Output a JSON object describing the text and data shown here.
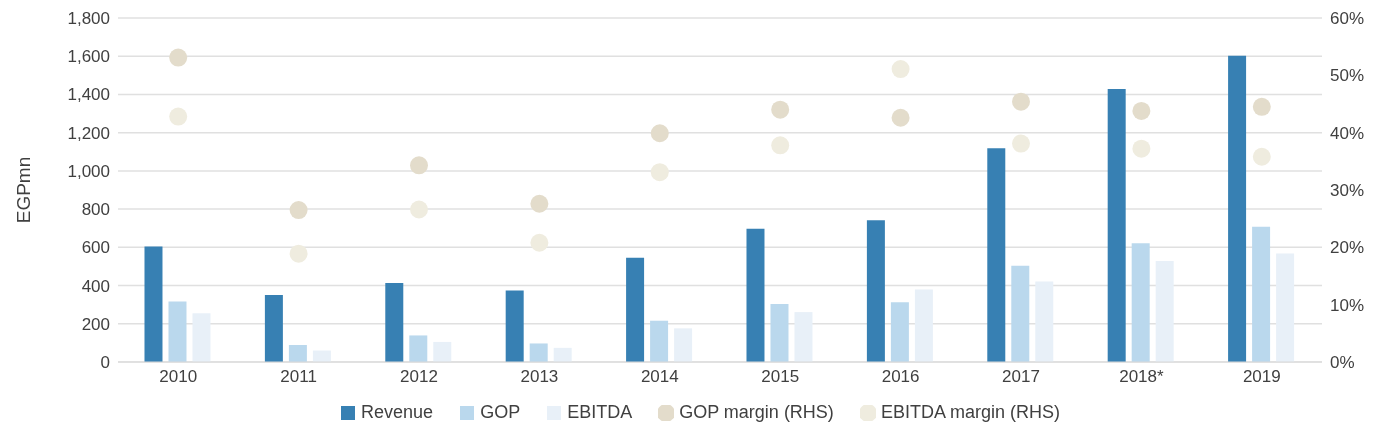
{
  "chart_data": {
    "type": "bar",
    "ylabel": "EGPmn",
    "categories": [
      "2010",
      "2011",
      "2012",
      "2013",
      "2014",
      "2015",
      "2016",
      "2017",
      "2018*",
      "2019"
    ],
    "series": [
      {
        "name": "Revenue",
        "color": "#3780b3",
        "values": [
          605,
          350,
          413,
          374,
          545,
          697,
          742,
          1118,
          1429,
          1603
        ]
      },
      {
        "name": "GOP",
        "color": "#bad8ed",
        "values": [
          316,
          89,
          139,
          97,
          216,
          303,
          313,
          503,
          621,
          708
        ]
      },
      {
        "name": "EBITDA",
        "color": "#e8f0f8",
        "values": [
          255,
          60,
          105,
          74,
          176,
          261,
          379,
          421,
          529,
          568
        ]
      },
      {
        "name": "GOP margin (RHS)",
        "type": "scatter",
        "axis": "y2",
        "color": "#e3dccb",
        "values": [
          53.1,
          26.5,
          34.3,
          27.6,
          39.9,
          44.0,
          42.6,
          45.4,
          43.8,
          44.5
        ]
      },
      {
        "name": "EBITDA margin (RHS)",
        "type": "scatter",
        "axis": "y2",
        "color": "#efecdf",
        "values": [
          42.8,
          18.9,
          26.6,
          20.8,
          33.1,
          37.8,
          51.1,
          38.1,
          37.2,
          35.8
        ]
      }
    ],
    "ylim": [
      0,
      1800
    ],
    "yticks": [
      0,
      200,
      400,
      600,
      800,
      {
        "value": 1000,
        "label": "1,000"
      },
      {
        "value": 1200,
        "label": "1,200"
      },
      {
        "value": 1400,
        "label": "1,400"
      },
      {
        "value": 1600,
        "label": "1,600"
      },
      {
        "value": 1800,
        "label": "1,800"
      }
    ],
    "y2lim": [
      0,
      60
    ],
    "y2ticks": [
      {
        "value": 0,
        "label": "0%"
      },
      {
        "value": 10,
        "label": "10%"
      },
      {
        "value": 20,
        "label": "20%"
      },
      {
        "value": 30,
        "label": "30%"
      },
      {
        "value": 40,
        "label": "40%"
      },
      {
        "value": 50,
        "label": "50%"
      },
      {
        "value": 60,
        "label": "60%"
      }
    ],
    "grid": "y",
    "legend": "bottom",
    "marker": "circle"
  }
}
